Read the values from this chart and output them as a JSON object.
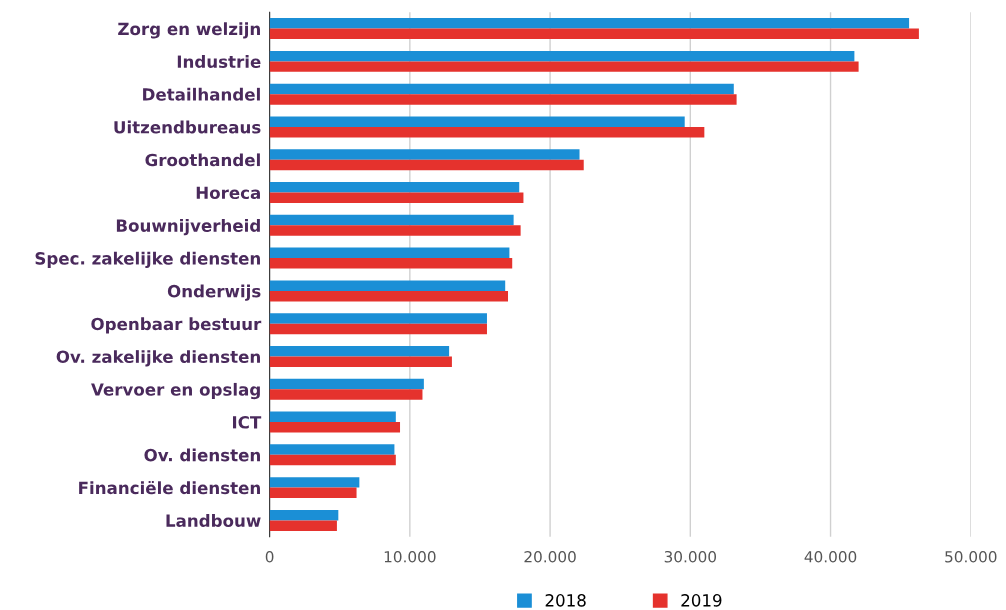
{
  "chart_data": {
    "type": "bar",
    "orientation": "horizontal",
    "categories": [
      "Zorg en welzijn",
      "Industrie",
      "Detailhandel",
      "Uitzendbureaus",
      "Groothandel",
      "Horeca",
      "Bouwnijverheid",
      "Spec. zakelijke diensten",
      "Onderwijs",
      "Openbaar bestuur",
      "Ov. zakelijke diensten",
      "Vervoer en opslag",
      "ICT",
      "Ov. diensten",
      "Financiële diensten",
      "Landbouw"
    ],
    "series": [
      {
        "name": "2018",
        "color": "#1b8fd6",
        "values": [
          45600,
          41700,
          33100,
          29600,
          22100,
          17800,
          17400,
          17100,
          16800,
          15500,
          12800,
          11000,
          9000,
          8900,
          6400,
          4900
        ]
      },
      {
        "name": "2019",
        "color": "#e5322d",
        "values": [
          46300,
          42000,
          33300,
          31000,
          22400,
          18100,
          17900,
          17300,
          17000,
          15500,
          13000,
          10900,
          9300,
          9000,
          6200,
          4800
        ]
      }
    ],
    "xlim": [
      0,
      50000
    ],
    "xticks": [
      0,
      {
        "value": 10000,
        "label": "10.000"
      },
      {
        "value": 20000,
        "label": "20.000"
      },
      {
        "value": 30000,
        "label": "30.000"
      },
      {
        "value": 40000,
        "label": "40.000"
      },
      {
        "value": 50000,
        "label": "50.000"
      }
    ],
    "grid": "x",
    "legend": "bottom"
  }
}
